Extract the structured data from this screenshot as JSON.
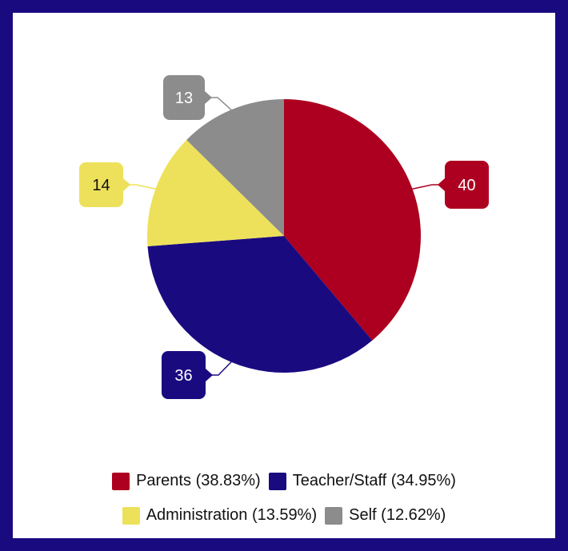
{
  "chart_data": {
    "type": "pie",
    "title": "",
    "slices": [
      {
        "label": "Parents",
        "value": 40,
        "percent_label": "(38.83%)",
        "color": "#ad0020"
      },
      {
        "label": "Teacher/Staff",
        "value": 36,
        "percent_label": "(34.95%)",
        "color": "#1a0a80"
      },
      {
        "label": "Administration",
        "value": 14,
        "percent_label": "(13.59%)",
        "color": "#ede15b"
      },
      {
        "label": "Self",
        "value": 13,
        "percent_label": "(12.62%)",
        "color": "#8c8c8c"
      }
    ],
    "legend_position": "bottom",
    "start_angle": "12 o'clock",
    "direction": "clockwise"
  }
}
